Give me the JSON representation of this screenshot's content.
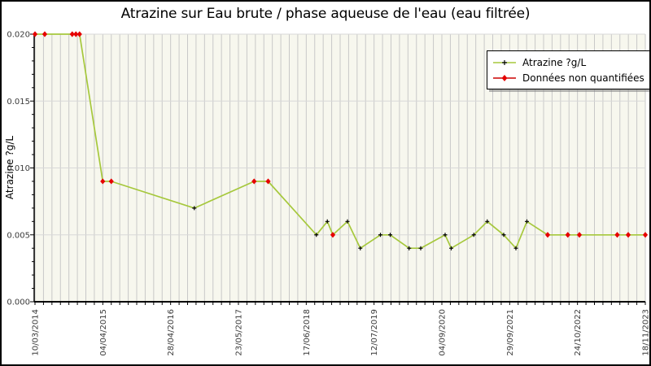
{
  "chart_data": {
    "type": "line",
    "title": "Atrazine sur Eau brute / phase aqueuse de l'eau (eau filtrée)",
    "xlabel": "",
    "ylabel": "Atrazine ?g/L",
    "ylim": [
      0,
      0.02
    ],
    "y_ticks": [
      {
        "value": 0.0,
        "label": "0.000"
      },
      {
        "value": 0.005,
        "label": "0.005"
      },
      {
        "value": 0.01,
        "label": "0.010"
      },
      {
        "value": 0.015,
        "label": "0.015"
      },
      {
        "value": 0.02,
        "label": "0.020"
      }
    ],
    "y_minor_step": 0.001,
    "x_tick_labels": [
      "10/03/2014",
      "04/04/2015",
      "28/04/2016",
      "23/05/2017",
      "17/06/2018",
      "12/07/2019",
      "04/09/2020",
      "29/09/2021",
      "24/10/2022",
      "18/11/2023"
    ],
    "x_minor_divisions": 72,
    "x_scale_note": "point x = fraction of axis from 10/03/2014 (0) to 18/11/2023 (1)",
    "grid": true,
    "legend": {
      "position": "top-right",
      "items": [
        {
          "label": "Atrazine ?g/L",
          "marker": "plus",
          "line_color": "#a6c83c",
          "marker_color": "#000000"
        },
        {
          "label": "Données non quantifiées",
          "marker": "diamond",
          "line_color": "#cc0000",
          "marker_color": "#e60000"
        }
      ]
    },
    "colors": {
      "plot_bg": "#f7f7ee",
      "grid_vertical": "#c8c8c8",
      "grid_horizontal": "#d8d8d8",
      "axis": "#000000",
      "line": "#a6c83c",
      "point_quantified": "#000000",
      "point_non_quantified": "#e60000",
      "tick_label": "#3a3a3a"
    },
    "series": [
      {
        "name": "Atrazine ?g/L",
        "color": "#a6c83c",
        "points": [
          {
            "x": 0.0,
            "y": 0.02,
            "quantified": false
          },
          {
            "x": 0.016,
            "y": 0.02,
            "quantified": false
          },
          {
            "x": 0.061,
            "y": 0.02,
            "quantified": false
          },
          {
            "x": 0.067,
            "y": 0.02,
            "quantified": false
          },
          {
            "x": 0.073,
            "y": 0.02,
            "quantified": false
          },
          {
            "x": 0.111,
            "y": 0.009,
            "quantified": false
          },
          {
            "x": 0.125,
            "y": 0.009,
            "quantified": false
          },
          {
            "x": 0.261,
            "y": 0.007,
            "quantified": true
          },
          {
            "x": 0.359,
            "y": 0.009,
            "quantified": false
          },
          {
            "x": 0.382,
            "y": 0.009,
            "quantified": false
          },
          {
            "x": 0.461,
            "y": 0.005,
            "quantified": true
          },
          {
            "x": 0.479,
            "y": 0.006,
            "quantified": true
          },
          {
            "x": 0.488,
            "y": 0.005,
            "quantified": false
          },
          {
            "x": 0.512,
            "y": 0.006,
            "quantified": true
          },
          {
            "x": 0.533,
            "y": 0.004,
            "quantified": true
          },
          {
            "x": 0.566,
            "y": 0.005,
            "quantified": true
          },
          {
            "x": 0.582,
            "y": 0.005,
            "quantified": true
          },
          {
            "x": 0.613,
            "y": 0.004,
            "quantified": true
          },
          {
            "x": 0.632,
            "y": 0.004,
            "quantified": true
          },
          {
            "x": 0.672,
            "y": 0.005,
            "quantified": true
          },
          {
            "x": 0.682,
            "y": 0.004,
            "quantified": true
          },
          {
            "x": 0.719,
            "y": 0.005,
            "quantified": true
          },
          {
            "x": 0.741,
            "y": 0.006,
            "quantified": true
          },
          {
            "x": 0.768,
            "y": 0.005,
            "quantified": true
          },
          {
            "x": 0.788,
            "y": 0.004,
            "quantified": true
          },
          {
            "x": 0.806,
            "y": 0.006,
            "quantified": true
          },
          {
            "x": 0.84,
            "y": 0.005,
            "quantified": false
          },
          {
            "x": 0.873,
            "y": 0.005,
            "quantified": false
          },
          {
            "x": 0.892,
            "y": 0.005,
            "quantified": false
          },
          {
            "x": 0.954,
            "y": 0.005,
            "quantified": false
          },
          {
            "x": 0.972,
            "y": 0.005,
            "quantified": false
          },
          {
            "x": 1.0,
            "y": 0.005,
            "quantified": false
          }
        ]
      }
    ]
  }
}
